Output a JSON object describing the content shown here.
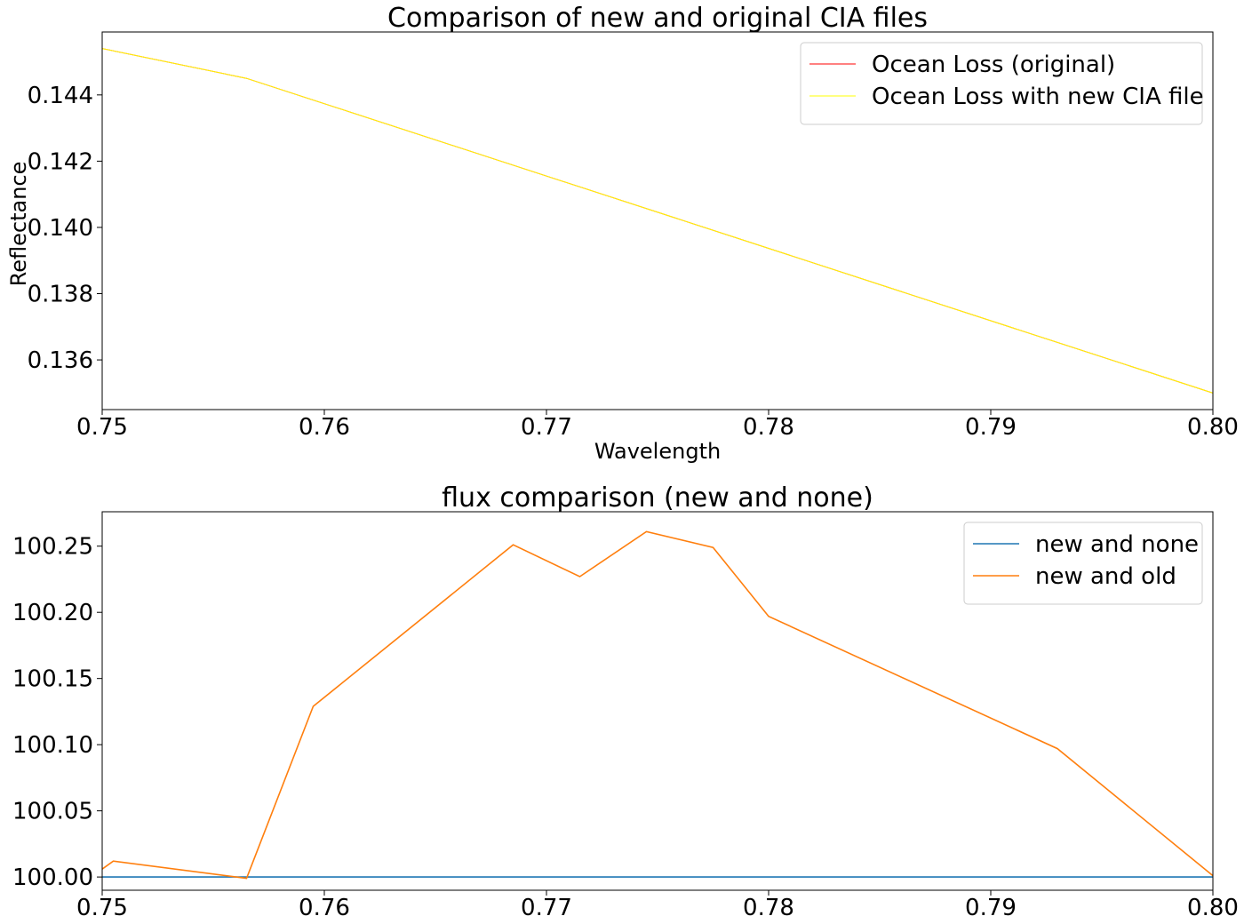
{
  "chart_data": [
    {
      "type": "line",
      "title": "Comparison of new and original CIA files",
      "xlabel": "Wavelength",
      "ylabel": "Reflectance",
      "xlim": [
        0.75,
        0.8
      ],
      "ylim": [
        0.1345,
        0.1459
      ],
      "xticks": [
        0.75,
        0.76,
        0.77,
        0.78,
        0.79,
        0.8
      ],
      "xtick_labels": [
        "0.75",
        "0.76",
        "0.77",
        "0.78",
        "0.79",
        "0.80"
      ],
      "yticks": [
        0.136,
        0.138,
        0.14,
        0.142,
        0.144
      ],
      "ytick_labels": [
        "0.136",
        "0.138",
        "0.140",
        "0.142",
        "0.144"
      ],
      "legend_position": "top-right",
      "series": [
        {
          "name": "Ocean Loss (original)",
          "color": "#ff0000",
          "x": [
            0.75,
            0.7565,
            0.8
          ],
          "y": [
            0.1454,
            0.1445,
            0.135
          ]
        },
        {
          "name": "Ocean Loss with new CIA file",
          "color": "#ffff00",
          "x": [
            0.75,
            0.7565,
            0.8
          ],
          "y": [
            0.1454,
            0.1445,
            0.135
          ]
        }
      ]
    },
    {
      "type": "line",
      "title": "flux comparison (new and none)",
      "xlabel": "",
      "ylabel": "",
      "xlim": [
        0.75,
        0.8
      ],
      "ylim": [
        99.99,
        100.276
      ],
      "xticks": [
        0.75,
        0.76,
        0.77,
        0.78,
        0.79,
        0.8
      ],
      "xtick_labels": [
        "0.75",
        "0.76",
        "0.77",
        "0.78",
        "0.79",
        "0.80"
      ],
      "yticks": [
        100.0,
        100.05,
        100.1,
        100.15,
        100.2,
        100.25
      ],
      "ytick_labels": [
        "100.00",
        "100.05",
        "100.10",
        "100.15",
        "100.20",
        "100.25"
      ],
      "legend_position": "top-right",
      "series": [
        {
          "name": "new and none",
          "color": "#1f77b4",
          "x": [
            0.75,
            0.8
          ],
          "y": [
            100.0,
            100.0
          ]
        },
        {
          "name": "new and old",
          "color": "#ff7f0e",
          "x": [
            0.75,
            0.7505,
            0.7565,
            0.7595,
            0.7685,
            0.7715,
            0.7745,
            0.7775,
            0.78,
            0.793,
            0.8
          ],
          "y": [
            100.006,
            100.012,
            99.999,
            100.129,
            100.251,
            100.227,
            100.261,
            100.249,
            100.197,
            100.097,
            100.001
          ]
        }
      ]
    }
  ]
}
